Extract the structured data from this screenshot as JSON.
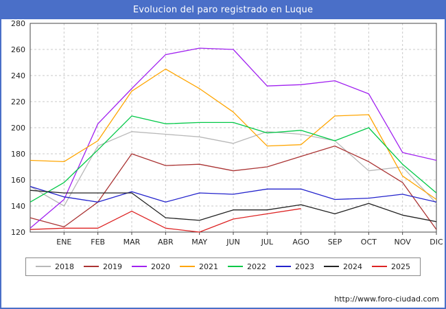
{
  "page": {
    "title": "Evolucion del paro registrado en Luque",
    "footer_url": "http://www.foro-ciudad.com"
  },
  "colors": {
    "frame_blue": "#4a6fc8",
    "grid": "#c9c9c9",
    "axis": "#444444",
    "tick_text": "#222222"
  },
  "chart_data": {
    "type": "line",
    "title": "Evolucion del paro registrado en Luque",
    "categories": [
      "ENE",
      "FEB",
      "MAR",
      "ABR",
      "MAY",
      "JUN",
      "JUL",
      "AGO",
      "SEP",
      "OCT",
      "NOV",
      "DIC"
    ],
    "x_note": "each series has a leading point drawn on the y-axis before ENE",
    "ylim": [
      120,
      280
    ],
    "ytick_step": 20,
    "grid": true,
    "legend_position": "bottom",
    "series": [
      {
        "name": "2018",
        "color": "#b8b8b8",
        "values": [
          155,
          140,
          186,
          197,
          195,
          193,
          188,
          197,
          195,
          190,
          167,
          170,
          142
        ]
      },
      {
        "name": "2019",
        "color": "#aa3333",
        "values": [
          131,
          124,
          143,
          180,
          171,
          172,
          167,
          170,
          178,
          186,
          174,
          158,
          122
        ]
      },
      {
        "name": "2020",
        "color": "#a020f0",
        "values": [
          123,
          145,
          203,
          230,
          256,
          261,
          260,
          232,
          233,
          236,
          226,
          181,
          175
        ]
      },
      {
        "name": "2021",
        "color": "#ffa500",
        "values": [
          175,
          174,
          190,
          228,
          245,
          230,
          212,
          186,
          187,
          209,
          210,
          163,
          145
        ]
      },
      {
        "name": "2022",
        "color": "#00c846",
        "values": [
          143,
          158,
          183,
          209,
          203,
          204,
          204,
          196,
          198,
          190,
          200,
          172,
          150
        ]
      },
      {
        "name": "2023",
        "color": "#2222cc",
        "values": [
          155,
          147,
          143,
          151,
          143,
          150,
          149,
          153,
          153,
          145,
          146,
          149,
          143
        ]
      },
      {
        "name": "2024",
        "color": "#222222",
        "values": [
          152,
          150,
          150,
          150,
          131,
          129,
          137,
          137,
          141,
          134,
          142,
          133,
          128
        ]
      },
      {
        "name": "2025",
        "color": "#dd2222",
        "values": [
          122,
          123,
          123,
          136,
          123,
          120,
          130,
          134,
          138,
          null,
          null,
          null,
          null
        ]
      }
    ]
  }
}
